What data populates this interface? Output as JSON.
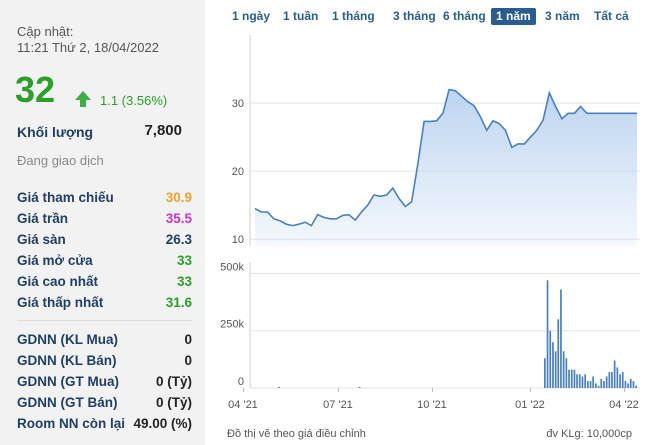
{
  "info": {
    "update_label": "Cập nhật:",
    "update_time": "11:21 Thứ 2, 18/04/2022",
    "price": "32",
    "change": "1.1 (3.56%)",
    "volume_label": "Khối lượng",
    "volume": "7,800",
    "status": "Đang giao dịch",
    "rows": [
      {
        "label": "Giá tham chiếu",
        "value": "30.9",
        "color": "#f0a030"
      },
      {
        "label": "Giá trần",
        "value": "35.5",
        "color": "#cc33cc"
      },
      {
        "label": "Giá sàn",
        "value": "26.3",
        "color": "#1f3f66"
      },
      {
        "label": "Giá mở cửa",
        "value": "33",
        "color": "#2aa02a"
      },
      {
        "label": "Giá cao nhất",
        "value": "33",
        "color": "#2aa02a"
      },
      {
        "label": "Giá thấp nhất",
        "value": "31.6",
        "color": "#2aa02a"
      }
    ],
    "rows2": [
      {
        "label": "GDNN (KL Mua)",
        "value": "0"
      },
      {
        "label": "GDNN (KL Bán)",
        "value": "0"
      },
      {
        "label": "GDNN (GT Mua)",
        "value": "0 (Tỷ)"
      },
      {
        "label": "GDNN (GT Bán)",
        "value": "0 (Tỷ)"
      },
      {
        "label": "Room NN còn lại",
        "value": "49.00 (%)"
      }
    ]
  },
  "tabs": [
    "1 ngày",
    "1 tuần",
    "1 tháng",
    "3 tháng",
    "6 tháng",
    "1 năm",
    "3 năm",
    "Tất cả"
  ],
  "active_tab": "1 năm",
  "footer": {
    "left": "Đồ thị vẽ theo giá điều chỉnh",
    "right": "đv KLg: 10,000cp"
  },
  "colors": {
    "accent": "#2a5d8f",
    "up": "#2aa02a",
    "line": "#4a7fc0",
    "fill": "#b9d2ef"
  },
  "chart_data": [
    {
      "type": "area",
      "yticks": [
        10,
        20,
        30
      ],
      "ylim": [
        9,
        40
      ],
      "x": [
        0,
        1,
        2,
        3,
        4,
        5,
        6,
        7,
        8,
        9,
        10,
        11,
        12,
        13,
        14,
        15,
        16,
        17,
        18,
        19,
        20,
        21,
        22,
        23,
        24,
        25,
        26,
        27,
        28,
        29,
        30,
        31,
        32,
        33,
        34,
        35,
        36,
        37,
        38,
        39,
        40,
        41,
        42,
        43,
        44,
        45,
        46,
        47,
        48,
        49,
        50,
        51,
        52,
        53,
        54,
        55,
        56,
        57,
        58,
        59,
        60,
        61
      ],
      "values": [
        14.5,
        14,
        14,
        13,
        12.7,
        12.2,
        12,
        12.2,
        12.5,
        12,
        13.6,
        13.2,
        13,
        13,
        13.5,
        13.6,
        12.8,
        14,
        15,
        16.5,
        16.3,
        16.5,
        17.5,
        16,
        14.8,
        15.5,
        21,
        27.3,
        27.3,
        27.4,
        28.5,
        32,
        31.8,
        31,
        30.2,
        29.6,
        28,
        26,
        27.4,
        27,
        26,
        23.5,
        24,
        24,
        25,
        26,
        27.5,
        31.5,
        29.5,
        27.7,
        28.5,
        28.5,
        29.5,
        28.5,
        28.5,
        28.5,
        28.5,
        28.5,
        28.5,
        28.5,
        28.5,
        28.5
      ],
      "xticks": [
        "04 '21",
        "07 '21",
        "10 '21",
        "01 '22",
        "04 '22"
      ]
    },
    {
      "type": "bar",
      "yticks": [
        "0",
        "250k",
        "500k"
      ],
      "ylim": [
        0,
        550000
      ],
      "values": [
        0,
        0,
        0,
        0,
        0,
        0,
        0,
        0,
        0,
        5000,
        0,
        0,
        0,
        0,
        0,
        0,
        0,
        0,
        0,
        0,
        0,
        0,
        0,
        0,
        0,
        0,
        0,
        0,
        0,
        0,
        0,
        0,
        0,
        0,
        0,
        0,
        0,
        0,
        0,
        5000,
        0,
        0,
        0,
        0,
        0,
        0,
        0,
        0,
        0,
        0,
        0,
        0,
        0,
        0,
        0,
        0,
        0,
        0,
        0,
        0,
        0,
        0,
        0,
        0,
        0,
        0,
        0,
        0,
        0,
        0,
        0,
        0,
        0,
        0,
        0,
        0,
        0,
        0,
        0,
        0,
        0,
        0,
        0,
        0,
        0,
        0,
        0,
        0,
        0,
        0,
        0,
        0,
        0,
        0,
        0,
        0,
        0,
        0,
        0,
        0,
        0,
        0,
        0,
        0,
        0,
        0,
        0,
        0,
        130000,
        470000,
        250000,
        200000,
        160000,
        300000,
        430000,
        160000,
        130000,
        80000,
        80000,
        80000,
        60000,
        60000,
        50000,
        60000,
        30000,
        30000,
        50000,
        20000,
        10000,
        40000,
        30000,
        50000,
        70000,
        70000,
        120000,
        90000,
        60000,
        70000,
        30000,
        20000,
        40000,
        30000,
        10000
      ]
    }
  ]
}
